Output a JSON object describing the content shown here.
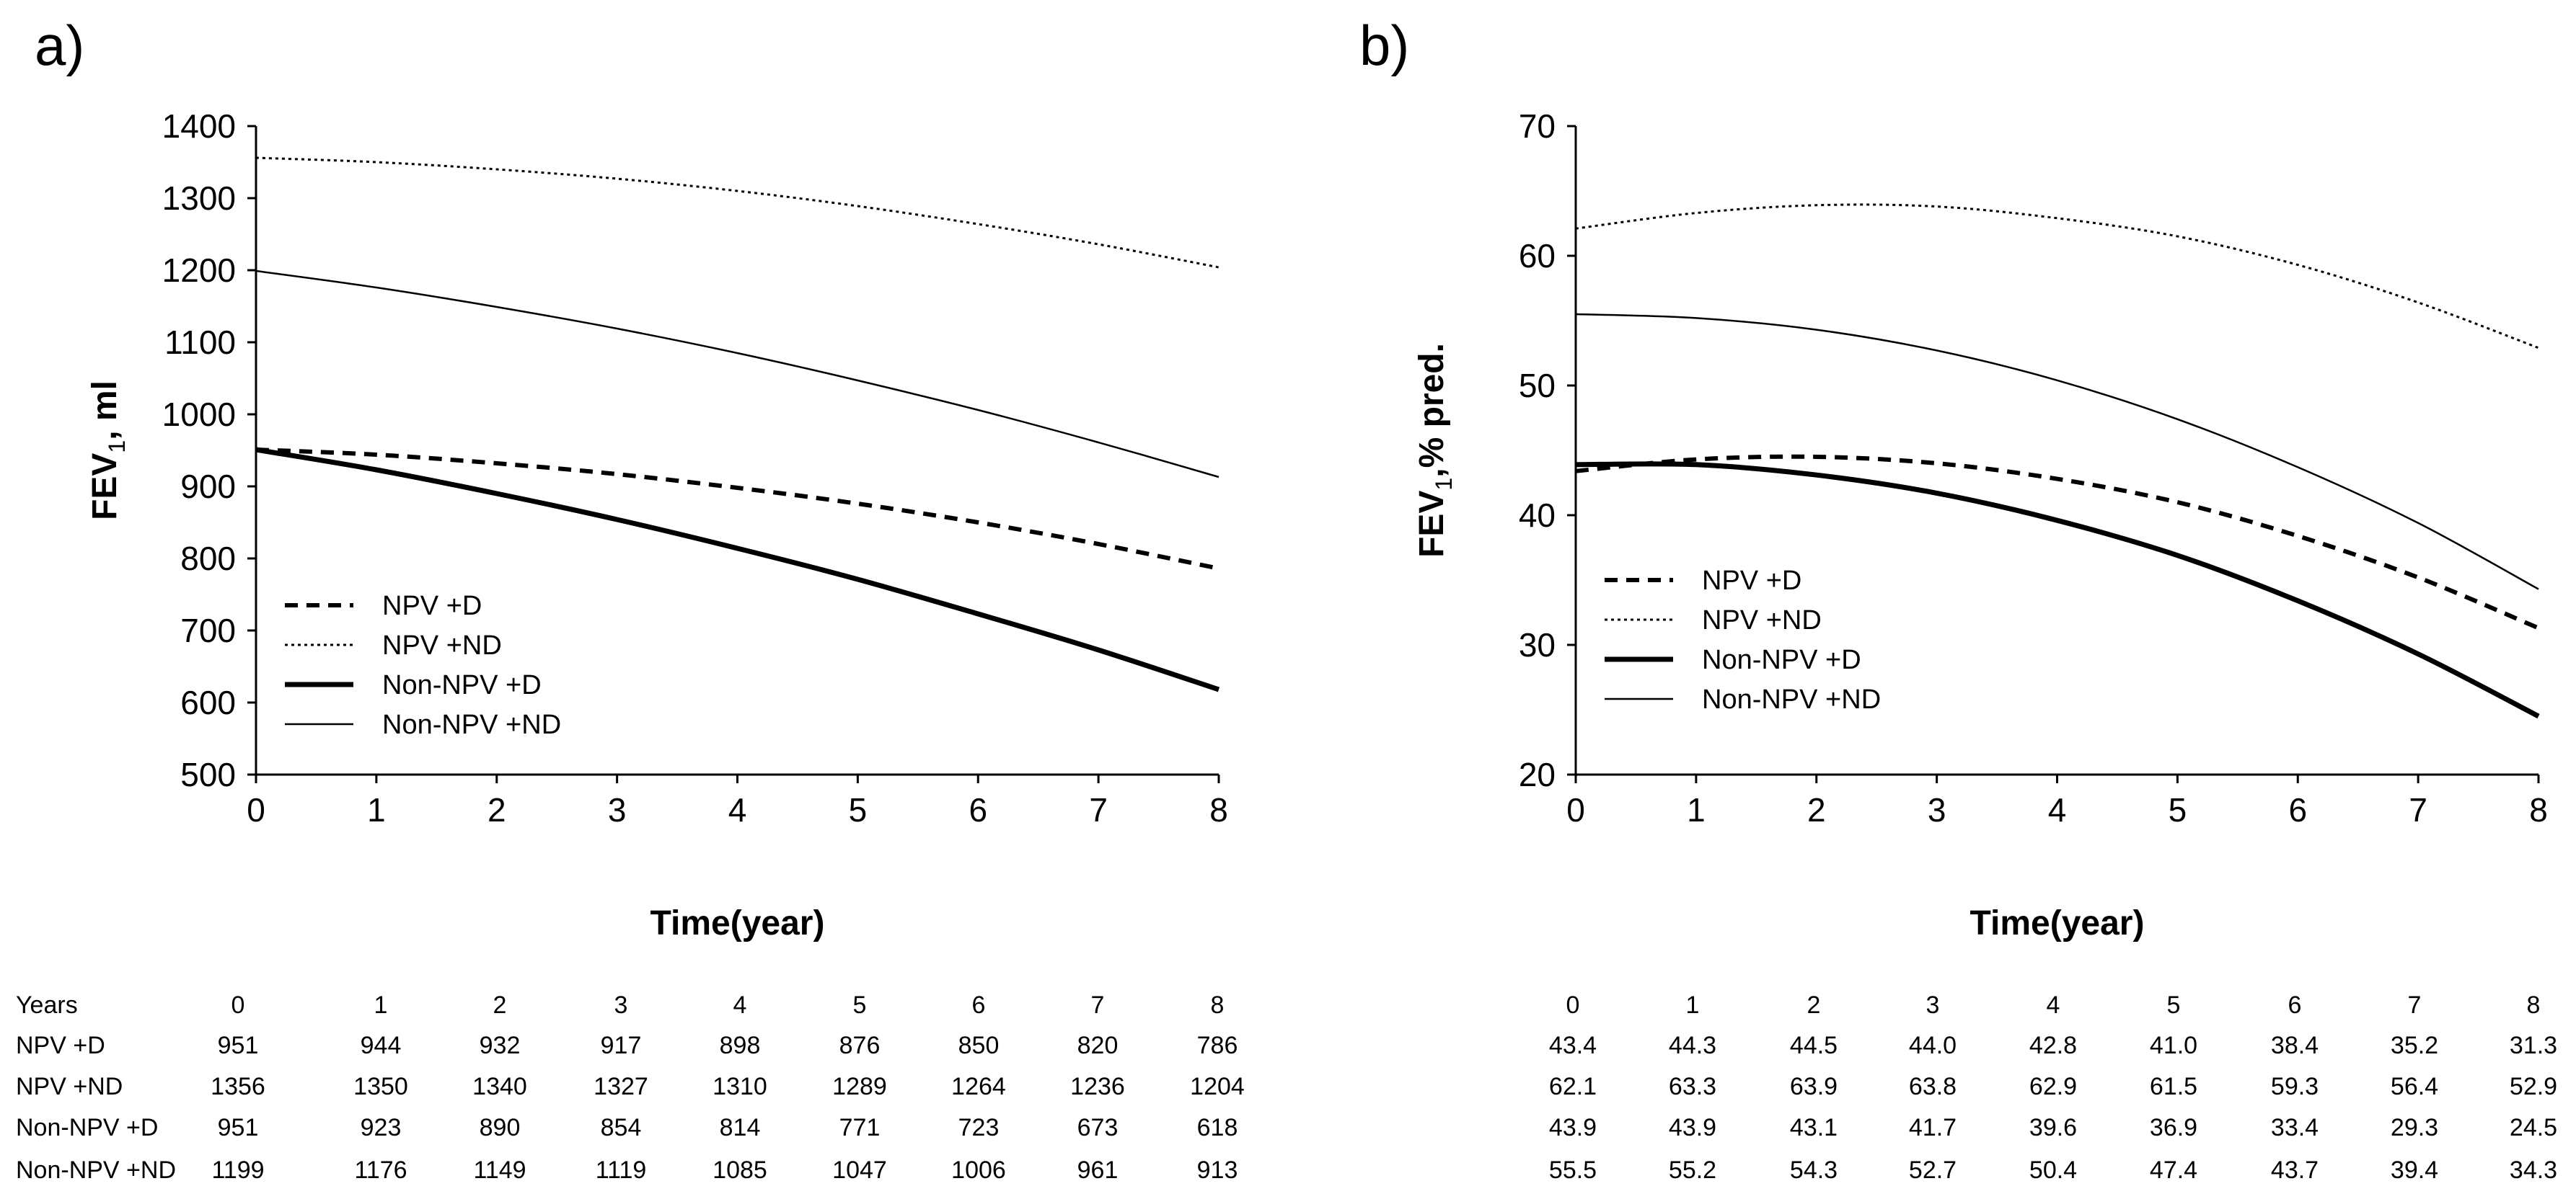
{
  "chart_data": [
    {
      "type": "line",
      "panel_label": "a)",
      "title": "",
      "xlabel": "Time(year)",
      "ylabel_main": "FEV",
      "ylabel_sub": "1",
      "ylabel_rest": ", ml",
      "x": [
        0,
        1,
        2,
        3,
        4,
        5,
        6,
        7,
        8
      ],
      "xlim": [
        0,
        8
      ],
      "ylim": [
        500,
        1400
      ],
      "x_ticks": [
        "0",
        "1",
        "2",
        "3",
        "4",
        "5",
        "6",
        "7",
        "8"
      ],
      "y_ticks": [
        "500",
        "600",
        "700",
        "800",
        "900",
        "1000",
        "1100",
        "1200",
        "1300",
        "1400"
      ],
      "grid": false,
      "legend_position": "lower-left",
      "series": [
        {
          "name": "NPV +D",
          "style": "dashed-thick",
          "values": [
            951,
            944,
            932,
            917,
            898,
            876,
            850,
            820,
            786
          ]
        },
        {
          "name": "NPV +ND",
          "style": "dotted-thin",
          "values": [
            1356,
            1350,
            1340,
            1327,
            1310,
            1289,
            1264,
            1236,
            1204
          ]
        },
        {
          "name": "Non-NPV +D",
          "style": "solid-thick",
          "values": [
            951,
            923,
            890,
            854,
            814,
            771,
            723,
            673,
            618
          ]
        },
        {
          "name": "Non-NPV +ND",
          "style": "solid-thin",
          "values": [
            1199,
            1176,
            1149,
            1119,
            1085,
            1047,
            1006,
            961,
            913
          ]
        }
      ],
      "table": {
        "header_label": "Years",
        "header": [
          "0",
          "1",
          "2",
          "3",
          "4",
          "5",
          "6",
          "7",
          "8"
        ],
        "rows": [
          {
            "label": "NPV +D",
            "cells": [
              "951",
              "944",
              "932",
              "917",
              "898",
              "876",
              "850",
              "820",
              "786"
            ]
          },
          {
            "label": "NPV +ND",
            "cells": [
              "1356",
              "1350",
              "1340",
              "1327",
              "1310",
              "1289",
              "1264",
              "1236",
              "1204"
            ]
          },
          {
            "label": "Non-NPV +D",
            "cells": [
              "951",
              "923",
              "890",
              "854",
              "814",
              "771",
              "723",
              "673",
              "618"
            ]
          },
          {
            "label": "Non-NPV +ND",
            "cells": [
              "1199",
              "1176",
              "1149",
              "1119",
              "1085",
              "1047",
              "1006",
              "961",
              "913"
            ]
          }
        ]
      }
    },
    {
      "type": "line",
      "panel_label": "b)",
      "title": "",
      "xlabel": "Time(year)",
      "ylabel_main": "FEV",
      "ylabel_sub": "1",
      "ylabel_rest": ",% pred.",
      "x": [
        0,
        1,
        2,
        3,
        4,
        5,
        6,
        7,
        8
      ],
      "xlim": [
        0,
        8
      ],
      "ylim": [
        20,
        70
      ],
      "x_ticks": [
        "0",
        "1",
        "2",
        "3",
        "4",
        "5",
        "6",
        "7",
        "8"
      ],
      "y_ticks": [
        "20",
        "30",
        "40",
        "50",
        "60",
        "70"
      ],
      "grid": false,
      "legend_position": "lower-left",
      "series": [
        {
          "name": "NPV +D",
          "style": "dashed-thick",
          "values": [
            43.4,
            44.3,
            44.5,
            44.0,
            42.8,
            41.0,
            38.4,
            35.2,
            31.3
          ]
        },
        {
          "name": "NPV +ND",
          "style": "dotted-thin",
          "values": [
            62.1,
            63.3,
            63.9,
            63.8,
            62.9,
            61.5,
            59.3,
            56.4,
            52.9
          ]
        },
        {
          "name": "Non-NPV +D",
          "style": "solid-thick",
          "values": [
            43.9,
            43.9,
            43.1,
            41.7,
            39.6,
            36.9,
            33.4,
            29.3,
            24.5
          ]
        },
        {
          "name": "Non-NPV +ND",
          "style": "solid-thin",
          "values": [
            55.5,
            55.2,
            54.3,
            52.7,
            50.4,
            47.4,
            43.7,
            39.4,
            34.3
          ]
        }
      ],
      "table": {
        "header_label": "",
        "header": [
          "0",
          "1",
          "2",
          "3",
          "4",
          "5",
          "6",
          "7",
          "8"
        ],
        "rows": [
          {
            "label": "",
            "cells": [
              "43.4",
              "44.3",
              "44.5",
              "44.0",
              "42.8",
              "41.0",
              "38.4",
              "35.2",
              "31.3"
            ]
          },
          {
            "label": "",
            "cells": [
              "62.1",
              "63.3",
              "63.9",
              "63.8",
              "62.9",
              "61.5",
              "59.3",
              "56.4",
              "52.9"
            ]
          },
          {
            "label": "",
            "cells": [
              "43.9",
              "43.9",
              "43.1",
              "41.7",
              "39.6",
              "36.9",
              "33.4",
              "29.3",
              "24.5"
            ]
          },
          {
            "label": "",
            "cells": [
              "55.5",
              "55.2",
              "54.3",
              "52.7",
              "50.4",
              "47.4",
              "43.7",
              "39.4",
              "34.3"
            ]
          }
        ]
      }
    }
  ]
}
